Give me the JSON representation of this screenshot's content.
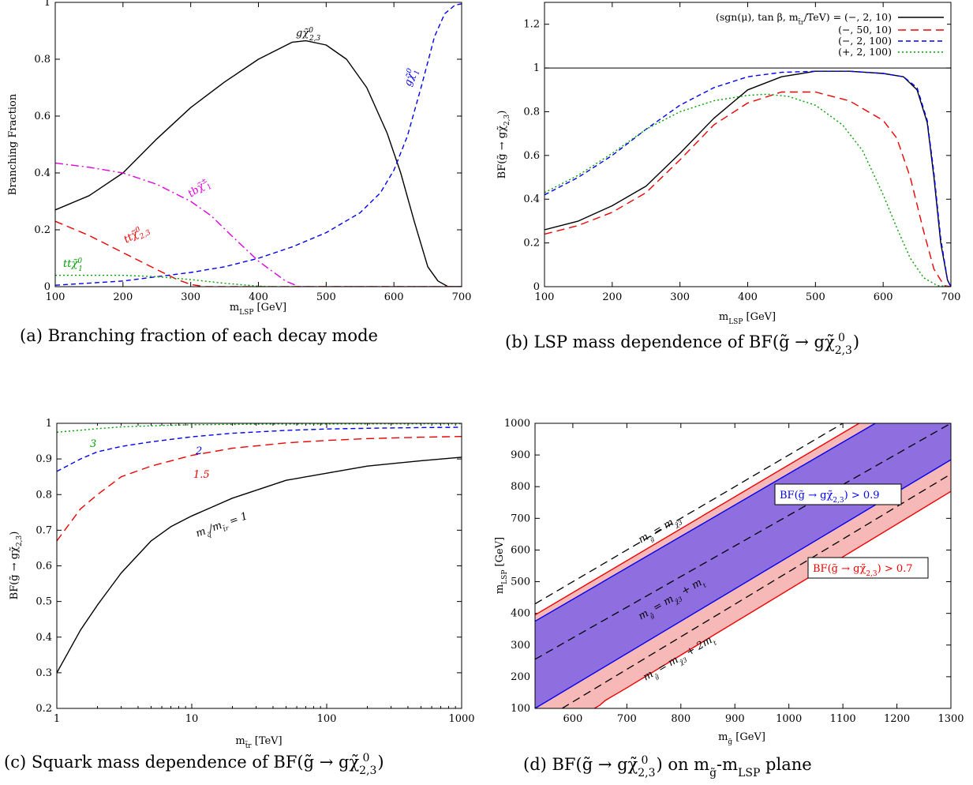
{
  "chart_data": [
    {
      "id": "a",
      "type": "line",
      "caption": "(a) Branching fraction of each decay mode",
      "xlabel": "m_LSP [GeV]",
      "ylabel": "Branching Fraction",
      "xlim": [
        100,
        700
      ],
      "ylim": [
        0,
        1
      ],
      "xticks": [
        100,
        200,
        300,
        400,
        500,
        600,
        700
      ],
      "yticks": [
        0,
        0.2,
        0.4,
        0.6,
        0.8,
        1
      ],
      "ytick_labels": [
        "0",
        "0.2",
        "0.4",
        "0.6",
        "0.8",
        "1"
      ],
      "series": [
        {
          "name": "gχ̃⁰₂,₃",
          "color": "#000000",
          "dash": "",
          "x": [
            100,
            150,
            200,
            250,
            300,
            350,
            400,
            450,
            470,
            500,
            530,
            560,
            590,
            610,
            630,
            650,
            665,
            680,
            700
          ],
          "y": [
            0.27,
            0.32,
            0.4,
            0.52,
            0.63,
            0.72,
            0.8,
            0.86,
            0.865,
            0.85,
            0.8,
            0.7,
            0.54,
            0.4,
            0.23,
            0.07,
            0.02,
            0,
            0
          ]
        },
        {
          "name": "gχ̃⁰₁",
          "color": "#0000ee",
          "dash": "6,4",
          "x": [
            100,
            200,
            300,
            350,
            400,
            450,
            500,
            550,
            580,
            600,
            620,
            640,
            660,
            675,
            690,
            700
          ],
          "y": [
            0.005,
            0.02,
            0.05,
            0.07,
            0.1,
            0.14,
            0.19,
            0.26,
            0.33,
            0.41,
            0.53,
            0.7,
            0.88,
            0.96,
            0.99,
            0.995
          ]
        },
        {
          "name": "tbχ̃±₁",
          "color": "#dd00dd",
          "dash": "10,4,2,4",
          "x": [
            100,
            150,
            200,
            250,
            300,
            330,
            360,
            400,
            440,
            460,
            480,
            700
          ],
          "y": [
            0.435,
            0.42,
            0.4,
            0.36,
            0.3,
            0.25,
            0.18,
            0.09,
            0.02,
            0,
            0,
            0
          ]
        },
        {
          "name": "ttχ̃⁰₂,₃",
          "color": "#ee0000",
          "dash": "10,6",
          "x": [
            100,
            150,
            200,
            250,
            280,
            300,
            320,
            700
          ],
          "y": [
            0.23,
            0.18,
            0.12,
            0.06,
            0.025,
            0.008,
            0,
            0
          ]
        },
        {
          "name": "ttχ̃⁰₁",
          "color": "#00a000",
          "dash": "2,3",
          "x": [
            100,
            200,
            250,
            300,
            350,
            400,
            420,
            700
          ],
          "y": [
            0.04,
            0.04,
            0.035,
            0.025,
            0.012,
            0.002,
            0,
            0
          ]
        }
      ]
    },
    {
      "id": "b",
      "type": "line",
      "caption": "(b) LSP mass dependence of BF(g̃ → gχ̃⁰₂,₃)",
      "xlabel": "m_LSP [GeV]",
      "ylabel": "BF(g̃ → gχ̃⁰₂,₃)",
      "xlim": [
        100,
        700
      ],
      "ylim": [
        0,
        1.3
      ],
      "xticks": [
        100,
        200,
        300,
        400,
        500,
        600,
        700
      ],
      "yticks": [
        0,
        0.2,
        0.4,
        0.6,
        0.8,
        1,
        1.2
      ],
      "ytick_labels": [
        "0",
        "0.2",
        "0.4",
        "0.6",
        "0.8",
        "1",
        "1.2"
      ],
      "hline": 1,
      "legend_header": "(sgn(μ), tan β, m_t̃r /TeV) = (−, 2, 10)",
      "series": [
        {
          "name": "(−, 2, 10)",
          "color": "#000000",
          "dash": "",
          "x": [
            100,
            150,
            200,
            250,
            300,
            350,
            400,
            450,
            500,
            550,
            600,
            630,
            650,
            665,
            675,
            685,
            695,
            700
          ],
          "y": [
            0.26,
            0.3,
            0.37,
            0.46,
            0.61,
            0.77,
            0.9,
            0.96,
            0.985,
            0.985,
            0.975,
            0.96,
            0.9,
            0.75,
            0.5,
            0.2,
            0.03,
            0
          ]
        },
        {
          "name": "(−, 50, 10)",
          "color": "#ee0000",
          "dash": "10,6",
          "x": [
            100,
            150,
            200,
            250,
            300,
            350,
            400,
            450,
            500,
            550,
            600,
            620,
            640,
            660,
            675,
            690,
            700
          ],
          "y": [
            0.24,
            0.28,
            0.34,
            0.43,
            0.58,
            0.74,
            0.84,
            0.89,
            0.89,
            0.85,
            0.76,
            0.68,
            0.5,
            0.25,
            0.08,
            0.005,
            0
          ]
        },
        {
          "name": "(−, 2, 100)",
          "color": "#0000ee",
          "dash": "6,4",
          "x": [
            100,
            150,
            200,
            250,
            300,
            350,
            400,
            450,
            500,
            550,
            600,
            630,
            650,
            665,
            675,
            685,
            695,
            700
          ],
          "y": [
            0.42,
            0.5,
            0.6,
            0.72,
            0.83,
            0.91,
            0.96,
            0.98,
            0.985,
            0.985,
            0.975,
            0.96,
            0.91,
            0.76,
            0.52,
            0.22,
            0.03,
            0
          ]
        },
        {
          "name": "(+, 2, 100)",
          "color": "#00a000",
          "dash": "2,3",
          "x": [
            100,
            150,
            200,
            250,
            300,
            350,
            400,
            430,
            460,
            500,
            540,
            570,
            600,
            620,
            640,
            660,
            680,
            700
          ],
          "y": [
            0.43,
            0.51,
            0.61,
            0.72,
            0.8,
            0.85,
            0.875,
            0.88,
            0.87,
            0.83,
            0.74,
            0.62,
            0.42,
            0.27,
            0.13,
            0.04,
            0.005,
            0
          ]
        }
      ]
    },
    {
      "id": "c",
      "type": "line",
      "caption": "(c) Squark mass dependence of BF(g̃ → gχ̃⁰₂,₃)",
      "xlabel": "m_t̃r [TeV]",
      "ylabel": "BF(g̃ → gχ̃⁰₂,₃)",
      "xscale": "log",
      "xlim": [
        1,
        1000
      ],
      "ylim": [
        0.2,
        1
      ],
      "xticks": [
        1,
        10,
        100,
        1000
      ],
      "yticks": [
        0.2,
        0.3,
        0.4,
        0.5,
        0.6,
        0.7,
        0.8,
        0.9,
        1
      ],
      "ytick_labels": [
        "0.2",
        "0.3",
        "0.4",
        "0.5",
        "0.6",
        "0.7",
        "0.8",
        "0.9",
        "1"
      ],
      "series": [
        {
          "name": "m_q̃/m_t̃r = 1",
          "color": "#000000",
          "dash": "",
          "x": [
            1,
            1.5,
            2,
            3,
            5,
            7,
            10,
            20,
            50,
            100,
            200,
            500,
            1000
          ],
          "y": [
            0.3,
            0.42,
            0.49,
            0.58,
            0.67,
            0.71,
            0.74,
            0.79,
            0.84,
            0.86,
            0.88,
            0.895,
            0.905
          ]
        },
        {
          "name": "1.5",
          "color": "#ee0000",
          "dash": "10,6",
          "x": [
            1,
            1.5,
            2,
            3,
            5,
            10,
            20,
            50,
            100,
            200,
            500,
            1000
          ],
          "y": [
            0.67,
            0.76,
            0.8,
            0.85,
            0.88,
            0.91,
            0.93,
            0.945,
            0.952,
            0.957,
            0.961,
            0.963
          ]
        },
        {
          "name": "2",
          "color": "#0000ee",
          "dash": "6,4",
          "x": [
            1,
            1.5,
            2,
            3,
            5,
            10,
            20,
            50,
            100,
            200,
            500,
            1000
          ],
          "y": [
            0.865,
            0.9,
            0.92,
            0.935,
            0.948,
            0.962,
            0.972,
            0.98,
            0.984,
            0.986,
            0.988,
            0.989
          ]
        },
        {
          "name": "3",
          "color": "#00a000",
          "dash": "2,3",
          "x": [
            1,
            2,
            3,
            5,
            10,
            20,
            50,
            100,
            1000
          ],
          "y": [
            0.975,
            0.985,
            0.99,
            0.993,
            0.996,
            0.997,
            0.998,
            0.998,
            0.999
          ]
        }
      ]
    },
    {
      "id": "d",
      "type": "area",
      "caption": "(d) BF(g̃ → gχ̃⁰₂,₃) on m_g̃-m_LSP plane",
      "xlabel": "m_g̃ [GeV]",
      "ylabel": "m_LSP [GeV]",
      "xlim": [
        530,
        1300
      ],
      "ylim": [
        100,
        1000
      ],
      "xticks": [
        600,
        700,
        800,
        900,
        1000,
        1100,
        1200,
        1300
      ],
      "yticks": [
        100,
        200,
        300,
        400,
        500,
        600,
        700,
        800,
        900,
        1000
      ],
      "regions": [
        {
          "name": "BF(g̃ → gχ̃⁰₂,₃) > 0.7",
          "fill": "#f7b8b8",
          "stroke": "#ee0000",
          "upper": {
            "x": [
              530,
              1130
            ],
            "y": [
              395,
              1000
            ]
          },
          "lower": {
            "x": [
              640,
              650,
              660,
              680,
              700,
              1300
            ],
            "y": [
              100,
              110,
              125,
              145,
              165,
              785
            ]
          }
        },
        {
          "name": "BF(g̃ → gχ̃⁰₂,₃) > 0.9",
          "fill": "#8f6fe0",
          "stroke": "#0000ee",
          "upper": {
            "x": [
              530,
              1160
            ],
            "y": [
              375,
              1000
            ]
          },
          "lower": {
            "x": [
              530,
              1300
            ],
            "y": [
              100,
              885
            ]
          }
        }
      ],
      "lines": [
        {
          "label": "m_g̃ = m_χ̃⁰₃",
          "x": [
            530,
            1100
          ],
          "y": [
            430,
            1000
          ]
        },
        {
          "label": "m_g̃ = m_χ̃⁰₃ + m_t",
          "x": [
            530,
            1300
          ],
          "y": [
            255,
            1000
          ]
        },
        {
          "label": "m_g̃ = m_χ̃⁰₃ + 2m_t",
          "x": [
            580,
            1300
          ],
          "y": [
            100,
            840
          ]
        }
      ]
    }
  ]
}
